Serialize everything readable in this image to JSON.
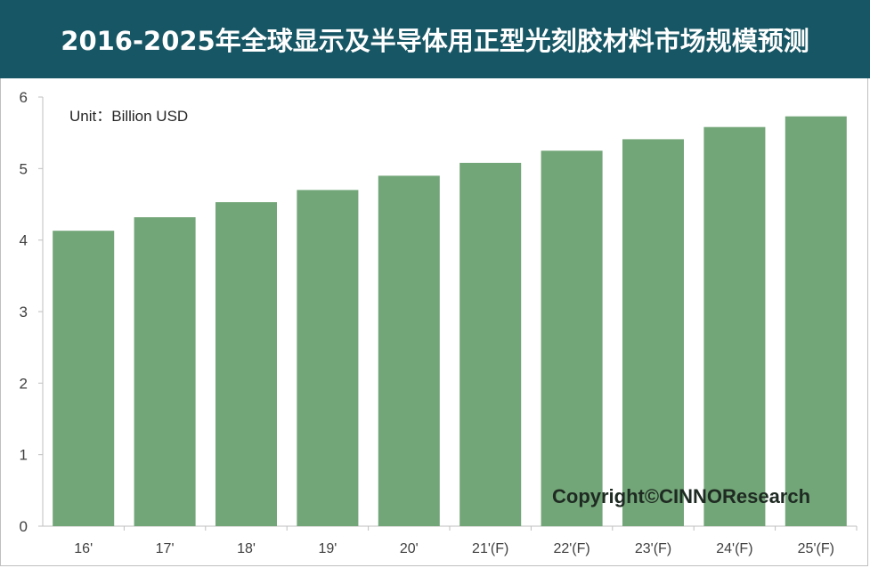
{
  "title": "2016-2025年全球显示及半导体用正型光刻胶材料市场规模预测",
  "unit_label": "Unit：Billion USD",
  "watermark": "Copyright©CINNOResearch",
  "colors": {
    "title_bg": "#175664",
    "title_text": "#ffffff",
    "bar": "#72a577",
    "axis": "#bfbfbf",
    "tick_text": "#404040"
  },
  "chart_data": {
    "type": "bar",
    "categories": [
      "16'",
      "17'",
      "18'",
      "19'",
      "20'",
      "21'(F)",
      "22'(F)",
      "23'(F)",
      "24'(F)",
      "25'(F)"
    ],
    "values": [
      4.13,
      4.32,
      4.53,
      4.7,
      4.9,
      5.08,
      5.25,
      5.41,
      5.58,
      5.73
    ],
    "yticks": [
      0,
      1,
      2,
      3,
      4,
      5,
      6
    ],
    "ylim": [
      0,
      6
    ],
    "grid": false,
    "legend": "none"
  }
}
